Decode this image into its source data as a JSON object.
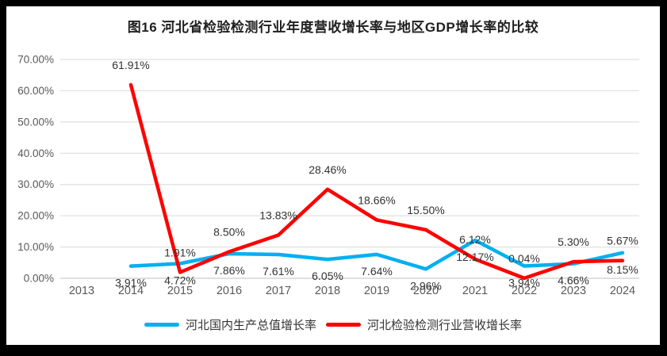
{
  "chart_data": {
    "type": "line",
    "title": "图16 河北省检验检测行业年度营收增长率与地区GDP增长率的比较",
    "categories": [
      "2013",
      "2014",
      "2015",
      "2016",
      "2017",
      "2018",
      "2019",
      "2020",
      "2021",
      "2022",
      "2023",
      "2024"
    ],
    "y_ticks": [
      "0.00%",
      "10.00%",
      "20.00%",
      "30.00%",
      "40.00%",
      "50.00%",
      "60.00%",
      "70.00%"
    ],
    "ylim": [
      0,
      70
    ],
    "grid": true,
    "legend_position": "bottom",
    "value_format": "percent_2dp",
    "colors": {
      "gdp_line": "#00B0F0",
      "revenue_line": "#FF0000",
      "axis_text": "#595959",
      "data_label_text": "#333333",
      "gridline": "#D9D9D9",
      "frame_background": "#000000",
      "panel_background": "#FFFFFF"
    },
    "series": [
      {
        "name": "河北国内生产总值增长率",
        "color": "#00B0F0",
        "label_position": "below",
        "values": [
          null,
          3.91,
          4.72,
          7.86,
          7.61,
          6.05,
          7.64,
          2.96,
          12.17,
          3.94,
          4.66,
          8.15
        ]
      },
      {
        "name": "河北检验检测行业营收增长率",
        "color": "#FF0000",
        "label_position": "above",
        "values": [
          null,
          61.91,
          1.91,
          8.5,
          13.83,
          28.46,
          18.66,
          15.5,
          6.12,
          0.04,
          5.3,
          5.67
        ]
      }
    ]
  }
}
